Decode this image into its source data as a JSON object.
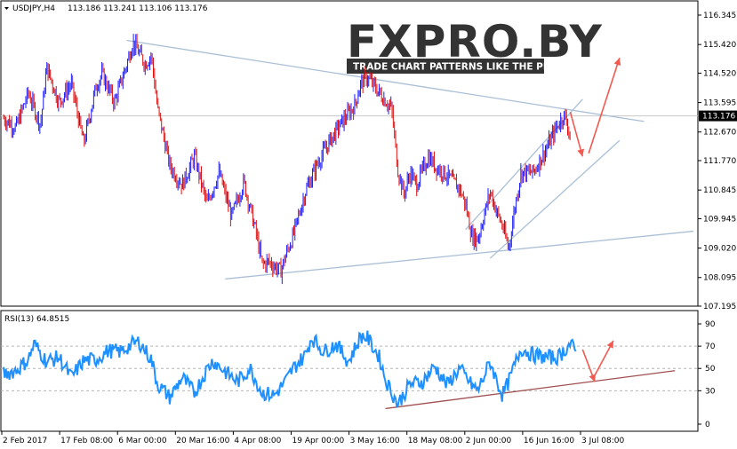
{
  "header": {
    "symbol": "USDJPY,H4",
    "values": "113.186 113.241 113.106 113.176"
  },
  "logo": {
    "text": "FXPRO.BY",
    "tagline": "TRADE CHART PATTERNS LIKE THE PROS"
  },
  "rsi": {
    "label": "RSI(13) 64.8515",
    "levels": [
      90,
      70,
      50,
      30,
      0
    ]
  },
  "chart_data": [
    {
      "type": "candlestick",
      "title": "USDJPY,H4",
      "y_ticks": [
        "116.345",
        "115.420",
        "114.520",
        "113.595",
        "112.670",
        "111.770",
        "110.845",
        "109.945",
        "109.020",
        "108.095",
        "107.195"
      ],
      "ylim": [
        107.195,
        116.345
      ],
      "current_price": "113.176",
      "x_ticks": [
        "2 Feb 2017",
        "17 Feb 08:00",
        "6 Mar 00:00",
        "20 Mar 16:00",
        "4 Apr 08:00",
        "19 Apr 00:00",
        "3 May 16:00",
        "18 May 08:00",
        "2 Jun 00:00",
        "16 Jun 16:00",
        "3 Jul 08:00"
      ],
      "price_path": [
        [
          0,
          113.1
        ],
        [
          2,
          112.8
        ],
        [
          4,
          113.9
        ],
        [
          6,
          112.9
        ],
        [
          7,
          114.7
        ],
        [
          9,
          113.6
        ],
        [
          11,
          114.2
        ],
        [
          13,
          112.3
        ],
        [
          15,
          114.1
        ],
        [
          16,
          114.5
        ],
        [
          18,
          113.6
        ],
        [
          20,
          114.8
        ],
        [
          21,
          115.5
        ],
        [
          23,
          114.8
        ],
        [
          24,
          115.1
        ],
        [
          25,
          113.4
        ],
        [
          27,
          111.6
        ],
        [
          29,
          111.0
        ],
        [
          31,
          111.9
        ],
        [
          33,
          110.4
        ],
        [
          35,
          111.4
        ],
        [
          37,
          110.0
        ],
        [
          39,
          111.1
        ],
        [
          41,
          109.5
        ],
        [
          42,
          108.5
        ],
        [
          43,
          108.6
        ],
        [
          45,
          108.3
        ],
        [
          46,
          108.9
        ],
        [
          47,
          109.4
        ],
        [
          49,
          110.8
        ],
        [
          51,
          111.7
        ],
        [
          53,
          112.4
        ],
        [
          55,
          113.0
        ],
        [
          57,
          113.5
        ],
        [
          58,
          114.2
        ],
        [
          59,
          114.4
        ],
        [
          61,
          113.9
        ],
        [
          63,
          113.4
        ],
        [
          64,
          111.5
        ],
        [
          65,
          110.7
        ],
        [
          66,
          111.4
        ],
        [
          67,
          111.0
        ],
        [
          69,
          111.9
        ],
        [
          70,
          111.6
        ],
        [
          72,
          111.3
        ],
        [
          74,
          110.9
        ],
        [
          75,
          110.4
        ],
        [
          76,
          109.4
        ],
        [
          77,
          109.3
        ],
        [
          79,
          110.8
        ],
        [
          80,
          110.2
        ],
        [
          81,
          109.7
        ],
        [
          82,
          109.0
        ],
        [
          83,
          110.3
        ],
        [
          84,
          111.4
        ],
        [
          86,
          111.4
        ],
        [
          88,
          112.1
        ],
        [
          90,
          112.9
        ],
        [
          91,
          113.2
        ],
        [
          92,
          112.6
        ]
      ],
      "projection_arrows": [
        {
          "from": [
            92,
            113.3
          ],
          "to": [
            94,
            111.9
          ],
          "color": "#f05a50"
        },
        {
          "from": [
            95,
            112.0
          ],
          "to": [
            100,
            115.0
          ],
          "color": "#f05a50"
        }
      ],
      "trendlines": [
        {
          "from": [
            20,
            115.55
          ],
          "to": [
            104,
            113.0
          ]
        },
        {
          "from": [
            36,
            108.05
          ],
          "to": [
            112,
            109.55
          ]
        },
        {
          "from": [
            75,
            109.6
          ],
          "to": [
            94,
            113.7
          ]
        },
        {
          "from": [
            79,
            108.7
          ],
          "to": [
            100,
            112.4
          ]
        }
      ]
    },
    {
      "type": "line",
      "title": "RSI(13) 64.8515",
      "ylim": [
        0,
        100
      ],
      "levels": [
        90,
        70,
        50,
        30,
        0
      ],
      "values": [
        [
          0,
          45
        ],
        [
          2,
          48
        ],
        [
          4,
          58
        ],
        [
          5,
          72
        ],
        [
          7,
          56
        ],
        [
          9,
          60
        ],
        [
          11,
          42
        ],
        [
          13,
          57
        ],
        [
          15,
          58
        ],
        [
          17,
          66
        ],
        [
          19,
          65
        ],
        [
          21,
          72
        ],
        [
          22,
          74
        ],
        [
          24,
          58
        ],
        [
          25,
          36
        ],
        [
          27,
          24
        ],
        [
          29,
          42
        ],
        [
          31,
          28
        ],
        [
          33,
          49
        ],
        [
          34,
          57
        ],
        [
          36,
          47
        ],
        [
          38,
          38
        ],
        [
          40,
          50
        ],
        [
          42,
          28
        ],
        [
          44,
          26
        ],
        [
          46,
          40
        ],
        [
          47,
          50
        ],
        [
          49,
          62
        ],
        [
          50,
          78
        ],
        [
          52,
          65
        ],
        [
          54,
          72
        ],
        [
          56,
          56
        ],
        [
          58,
          79
        ],
        [
          59,
          78
        ],
        [
          61,
          60
        ],
        [
          62,
          40
        ],
        [
          64,
          18
        ],
        [
          66,
          36
        ],
        [
          68,
          38
        ],
        [
          70,
          52
        ],
        [
          72,
          35
        ],
        [
          74,
          50
        ],
        [
          76,
          35
        ],
        [
          77,
          30
        ],
        [
          79,
          56
        ],
        [
          80,
          40
        ],
        [
          81,
          26
        ],
        [
          82,
          38
        ],
        [
          84,
          68
        ],
        [
          86,
          62
        ],
        [
          88,
          60
        ],
        [
          90,
          60
        ],
        [
          92,
          72
        ],
        [
          93,
          64
        ]
      ],
      "projection_arrows": [
        {
          "from": [
            94,
            67
          ],
          "to": [
            96,
            38
          ],
          "color": "#f05a50"
        },
        {
          "from": [
            96,
            44
          ],
          "to": [
            99,
            75
          ],
          "color": "#f05a50"
        }
      ],
      "trendline": {
        "from": [
          62,
          14
        ],
        "to": [
          109,
          48
        ]
      }
    }
  ]
}
